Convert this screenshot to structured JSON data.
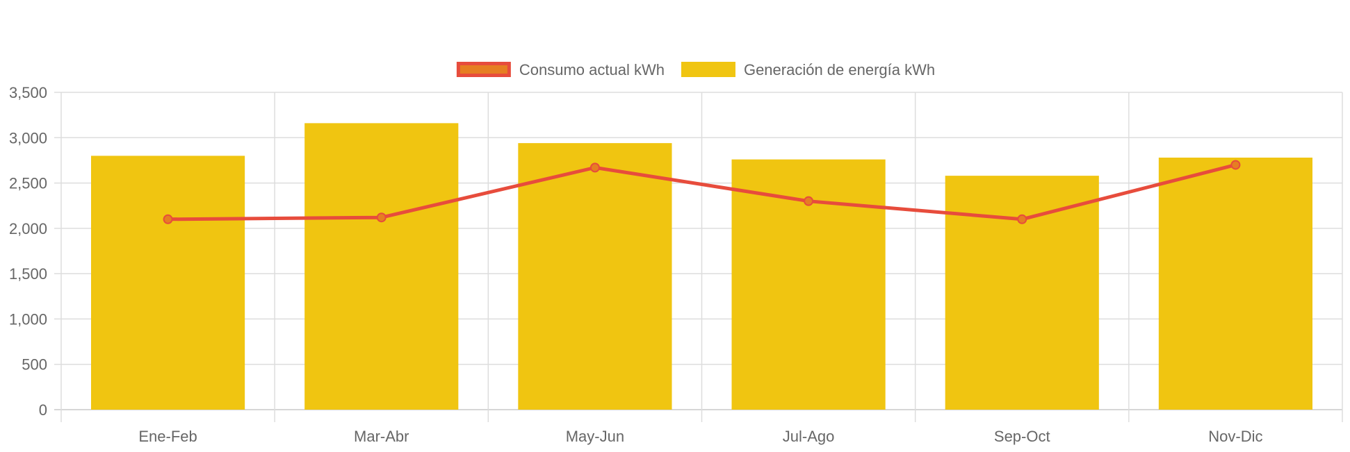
{
  "chart_data": {
    "type": "bar",
    "categories": [
      "Ene-Feb",
      "Mar-Abr",
      "May-Jun",
      "Jul-Ago",
      "Sep-Oct",
      "Nov-Dic"
    ],
    "series": [
      {
        "name": "Generación de energía kWh",
        "kind": "bar",
        "color": "#f0c511",
        "values": [
          2800,
          3160,
          2940,
          2760,
          2580,
          2780
        ]
      },
      {
        "name": "Consumo actual kWh",
        "kind": "line",
        "color": "#e74c3c",
        "point_fill": "#e67e22",
        "values": [
          2100,
          2120,
          2670,
          2300,
          2100,
          2700
        ]
      }
    ],
    "y_ticks": [
      "0",
      "500",
      "1,000",
      "1,500",
      "2,000",
      "2,500",
      "3,000",
      "3,500"
    ],
    "ylim": [
      0,
      3500
    ],
    "y_step": 500,
    "grid": true,
    "legend": "top-center",
    "title": "",
    "xlabel": "",
    "ylabel": ""
  },
  "legend": {
    "items": [
      {
        "label": "Consumo actual kWh",
        "fill": "#e67e22",
        "stroke": "#e74c3c"
      },
      {
        "label": "Generación de energía kWh",
        "fill": "#f0c511",
        "stroke": "#f0c511"
      }
    ]
  },
  "colors": {
    "grid": "#dddddd",
    "axis_text": "#666666",
    "legend_text": "#666666"
  }
}
